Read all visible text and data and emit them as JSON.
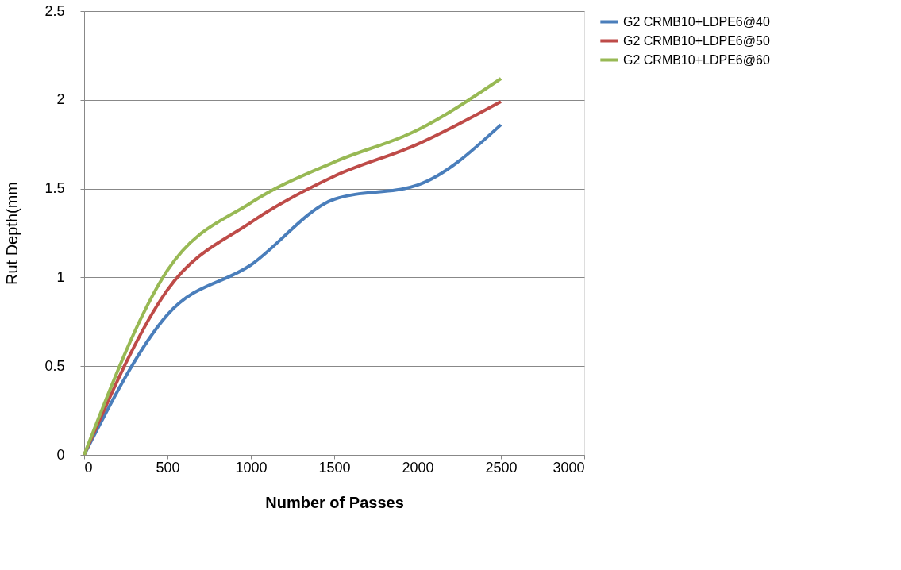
{
  "chart_data": {
    "type": "line",
    "xlabel": "Number of Passes",
    "ylabel": "Rut Depth(mm",
    "x": [
      0,
      500,
      1000,
      1500,
      2000,
      2500
    ],
    "series": [
      {
        "name": "G2 CRMB10+LDPE6@40",
        "color": "#4a7ebb",
        "values": [
          0,
          0.79,
          1.07,
          1.44,
          1.52,
          1.86
        ]
      },
      {
        "name": "G2 CRMB10+LDPE6@50",
        "color": "#be4b48",
        "values": [
          0,
          0.93,
          1.31,
          1.57,
          1.75,
          1.99
        ]
      },
      {
        "name": "G2 CRMB10+LDPE6@60",
        "color": "#98b954",
        "values": [
          0,
          1.04,
          1.42,
          1.65,
          1.83,
          2.12
        ]
      }
    ],
    "xlim": [
      0,
      3000
    ],
    "xticks": [
      0,
      500,
      1000,
      1500,
      2000,
      2500,
      3000
    ],
    "ylim": [
      0,
      2.5
    ],
    "yticks": [
      0,
      0.5,
      1,
      1.5,
      2,
      2.5
    ],
    "grid": "y",
    "legend": "right",
    "marker": "none",
    "line_style": "solid"
  }
}
